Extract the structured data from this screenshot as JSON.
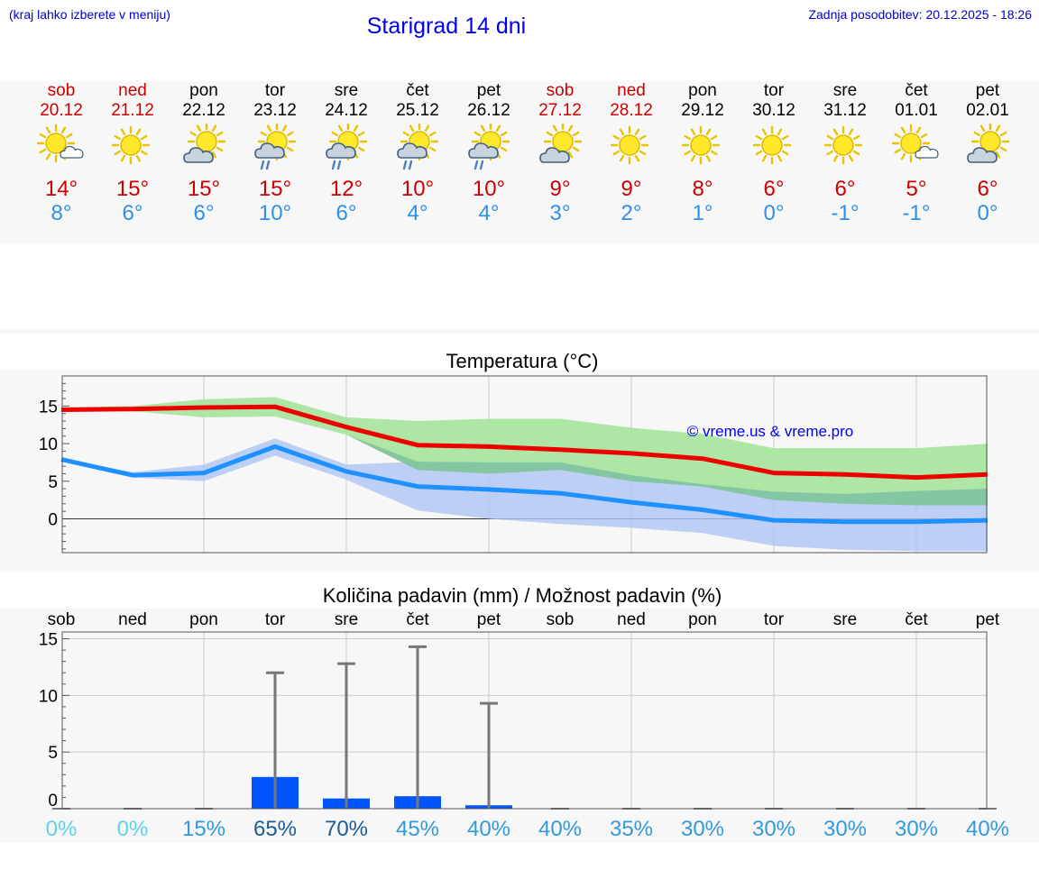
{
  "header": {
    "hint": "(kraj lahko izberete v meniju)",
    "title": "Starigrad 14 dni",
    "updated": "Zadnja posodobitev: 20.12.2025 - 18:26"
  },
  "days": [
    {
      "name": "sob",
      "date": "20.12",
      "weekend": true,
      "icon": "sun-cloud-icon",
      "tmax": "14°",
      "tmin": "8°"
    },
    {
      "name": "ned",
      "date": "21.12",
      "weekend": true,
      "icon": "sun-icon",
      "tmax": "15°",
      "tmin": "6°"
    },
    {
      "name": "pon",
      "date": "22.12",
      "weekend": false,
      "icon": "cloud-sun-icon",
      "tmax": "15°",
      "tmin": "6°"
    },
    {
      "name": "tor",
      "date": "23.12",
      "weekend": false,
      "icon": "sun-cloud-rain-icon",
      "tmax": "15°",
      "tmin": "10°"
    },
    {
      "name": "sre",
      "date": "24.12",
      "weekend": false,
      "icon": "sun-cloud-rain-icon",
      "tmax": "12°",
      "tmin": "6°"
    },
    {
      "name": "čet",
      "date": "25.12",
      "weekend": false,
      "icon": "sun-cloud-rain-icon",
      "tmax": "10°",
      "tmin": "4°"
    },
    {
      "name": "pet",
      "date": "26.12",
      "weekend": false,
      "icon": "sun-cloud-rain-icon",
      "tmax": "10°",
      "tmin": "4°"
    },
    {
      "name": "sob",
      "date": "27.12",
      "weekend": true,
      "icon": "cloud-sun-icon",
      "tmax": "9°",
      "tmin": "3°"
    },
    {
      "name": "ned",
      "date": "28.12",
      "weekend": true,
      "icon": "sun-icon",
      "tmax": "9°",
      "tmin": "2°"
    },
    {
      "name": "pon",
      "date": "29.12",
      "weekend": false,
      "icon": "sun-icon",
      "tmax": "8°",
      "tmin": "1°"
    },
    {
      "name": "tor",
      "date": "30.12",
      "weekend": false,
      "icon": "sun-icon",
      "tmax": "6°",
      "tmin": "0°"
    },
    {
      "name": "sre",
      "date": "31.12",
      "weekend": false,
      "icon": "sun-icon",
      "tmax": "6°",
      "tmin": "-1°"
    },
    {
      "name": "čet",
      "date": "01.01",
      "weekend": false,
      "icon": "sun-cloud-icon",
      "tmax": "5°",
      "tmin": "-1°"
    },
    {
      "name": "pet",
      "date": "02.01",
      "weekend": false,
      "icon": "cloud-sun-icon",
      "tmax": "6°",
      "tmin": "0°"
    }
  ],
  "colors": {
    "max_line": "#ee0000",
    "min_line": "#1e90ff",
    "max_band": "#a9e5a0",
    "min_band": "#aec4f3",
    "overlap_band": "#7fc49a",
    "precip_bar": "#0055ff",
    "weekend": "#cc0000",
    "link": "#0000ee"
  },
  "chart_data": [
    {
      "type": "line",
      "title": "Temperatura (°C)",
      "watermark": "© vreme.us & vreme.pro",
      "categories": [
        "sob",
        "ned",
        "pon",
        "tor",
        "sre",
        "čet",
        "pet",
        "sob",
        "ned",
        "pon",
        "tor",
        "sre",
        "čet",
        "pet"
      ],
      "ylim": [
        -4.5,
        19
      ],
      "yticks": [
        0,
        5,
        10,
        15
      ],
      "series": [
        {
          "name": "max",
          "values": [
            14.5,
            14.6,
            14.8,
            14.9,
            12.2,
            9.8,
            9.6,
            9.2,
            8.7,
            8.0,
            6.1,
            5.9,
            5.5,
            5.9
          ],
          "band_low": [
            14.5,
            14.3,
            13.5,
            13.6,
            11.2,
            6.5,
            6.0,
            6.5,
            5.0,
            4.3,
            2.5,
            2.0,
            1.8,
            1.8
          ],
          "band_high": [
            14.8,
            15.0,
            15.9,
            16.2,
            13.5,
            13.0,
            13.3,
            13.3,
            12.1,
            11.3,
            9.4,
            9.4,
            9.4,
            10.0
          ]
        },
        {
          "name": "min",
          "values": [
            7.9,
            5.8,
            6.1,
            9.6,
            6.3,
            4.3,
            3.9,
            3.4,
            2.2,
            1.2,
            -0.2,
            -0.4,
            -0.4,
            -0.2
          ],
          "band_low": [
            7.9,
            5.5,
            5.0,
            8.4,
            5.2,
            1.1,
            0.0,
            -0.7,
            -1.2,
            -1.9,
            -3.6,
            -4.1,
            -4.3,
            -4.3
          ],
          "band_high": [
            8.0,
            6.2,
            7.2,
            10.7,
            7.2,
            7.6,
            7.5,
            7.5,
            5.8,
            4.6,
            3.6,
            3.3,
            3.7,
            4.0
          ]
        }
      ]
    },
    {
      "type": "bar",
      "title": "Količina padavin (mm) / Možnost padavin (%)",
      "categories": [
        "sob",
        "ned",
        "pon",
        "tor",
        "sre",
        "čet",
        "pet",
        "sob",
        "ned",
        "pon",
        "tor",
        "sre",
        "čet",
        "pet"
      ],
      "ylim": [
        0,
        15.6
      ],
      "yticks": [
        0,
        5,
        10,
        15
      ],
      "values": [
        0,
        0,
        0,
        2.8,
        0.9,
        1.1,
        0.3,
        0,
        0,
        0,
        0,
        0,
        0,
        0
      ],
      "range_max": [
        0,
        0,
        0,
        12,
        12.8,
        14.3,
        9.3,
        0,
        0,
        0,
        0,
        0,
        0,
        0
      ],
      "probability": [
        "0%",
        "0%",
        "15%",
        "65%",
        "70%",
        "45%",
        "40%",
        "40%",
        "35%",
        "30%",
        "30%",
        "30%",
        "30%",
        "40%"
      ],
      "probability_colors": [
        "#5ed3ea",
        "#5ed3ea",
        "#3399dd",
        "#1a5e99",
        "#1a5e99",
        "#3399dd",
        "#3399dd",
        "#3399dd",
        "#3399dd",
        "#3399dd",
        "#3399dd",
        "#3399dd",
        "#3399dd",
        "#3399dd"
      ]
    }
  ]
}
